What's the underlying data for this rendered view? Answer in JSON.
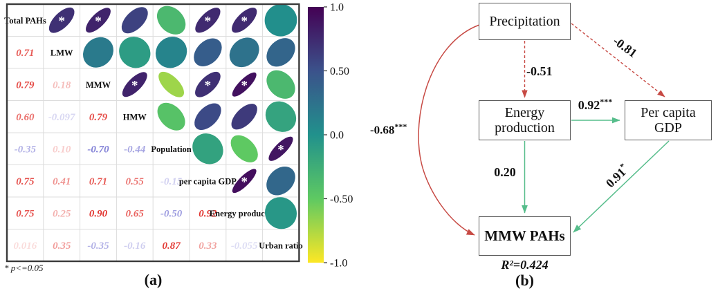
{
  "chart_data": {
    "type": "heatmap",
    "variables": [
      "Total PAHs",
      "LMW",
      "MMW",
      "HMW",
      "Population",
      "per capita GDP",
      "Energy production",
      "Urban ratio"
    ],
    "matrix_lower": [
      [
        0.71
      ],
      [
        0.79,
        0.18
      ],
      [
        0.6,
        -0.097,
        0.79
      ],
      [
        -0.35,
        0.1,
        -0.7,
        -0.44
      ],
      [
        0.75,
        0.41,
        0.71,
        0.55,
        -0.15
      ],
      [
        0.75,
        0.25,
        0.9,
        0.65,
        -0.5,
        0.92
      ],
      [
        0.016,
        0.35,
        -0.35,
        -0.16,
        0.87,
        0.33,
        -0.055
      ]
    ],
    "matrix_lower_display": [
      [
        "0.71"
      ],
      [
        "0.79",
        "0.18"
      ],
      [
        "0.60",
        "-0.097",
        "0.79"
      ],
      [
        "-0.35",
        "0.10",
        "-0.70",
        "-0.44"
      ],
      [
        "0.75",
        "0.41",
        "0.71",
        "0.55",
        "-0.15"
      ],
      [
        "0.75",
        "0.25",
        "0.90",
        "0.65",
        "-0.50",
        "0.92"
      ],
      [
        "0.016",
        "0.35",
        "-0.35",
        "-0.16",
        "0.87",
        "0.33",
        "-0.055"
      ]
    ],
    "starred_pairs": [
      [
        0,
        1
      ],
      [
        0,
        2
      ],
      [
        0,
        5
      ],
      [
        0,
        6
      ],
      [
        2,
        3
      ],
      [
        2,
        5
      ],
      [
        2,
        6
      ],
      [
        4,
        7
      ],
      [
        5,
        6
      ]
    ],
    "colorbar": {
      "tick_labels": [
        "1.0",
        "0.50",
        "0.0",
        "-0.50",
        "-1.0"
      ],
      "tick_values": [
        1,
        0.5,
        0,
        -0.5,
        -1
      ],
      "range": [
        -1,
        1
      ],
      "stops": [
        "#440154",
        "#3b528b",
        "#21918c",
        "#5ec962",
        "#fde725"
      ],
      "position": "right"
    },
    "value_colors": {
      "positive": "#df241e",
      "negative": "#5553c8"
    }
  },
  "panel_a": {
    "label": "(a)",
    "footnote": "* p<=0.05"
  },
  "panel_b": {
    "label": "(b)",
    "r_squared": "R²=0.424",
    "colors": {
      "negative_path": "#c74a44",
      "positive_path": "#56bd8b",
      "box_border": "#5a5a5a"
    },
    "nodes": {
      "precipitation": {
        "label": "Precipitation"
      },
      "energy": {
        "line1": "Energy",
        "line2": "production"
      },
      "gdp": {
        "line1": "Per capita",
        "line2": "GDP"
      },
      "mmw": {
        "label": "MMW PAHs"
      }
    },
    "edges": {
      "precipitation_to_energy": {
        "from": "Precipitation",
        "to": "Energy production",
        "value": "-0.51",
        "stars": "",
        "sign": "negative",
        "line": "dashed"
      },
      "precipitation_to_gdp": {
        "from": "Precipitation",
        "to": "Per capita GDP",
        "value": "-0.81",
        "stars": "",
        "sign": "negative",
        "line": "dashed"
      },
      "energy_to_gdp": {
        "from": "Energy production",
        "to": "Per capita GDP",
        "value": "0.92",
        "stars": "***",
        "sign": "positive",
        "line": "solid"
      },
      "energy_to_mmw": {
        "from": "Energy production",
        "to": "MMW PAHs",
        "value": "0.20",
        "stars": "",
        "sign": "positive",
        "line": "solid"
      },
      "gdp_to_mmw": {
        "from": "Per capita GDP",
        "to": "MMW PAHs",
        "value": "0.91",
        "stars": "*",
        "sign": "positive",
        "line": "solid"
      },
      "precipitation_to_mmw": {
        "from": "Precipitation",
        "to": "MMW PAHs",
        "value": "-0.68",
        "stars": "***",
        "sign": "negative",
        "line": "solid-curved"
      }
    }
  }
}
